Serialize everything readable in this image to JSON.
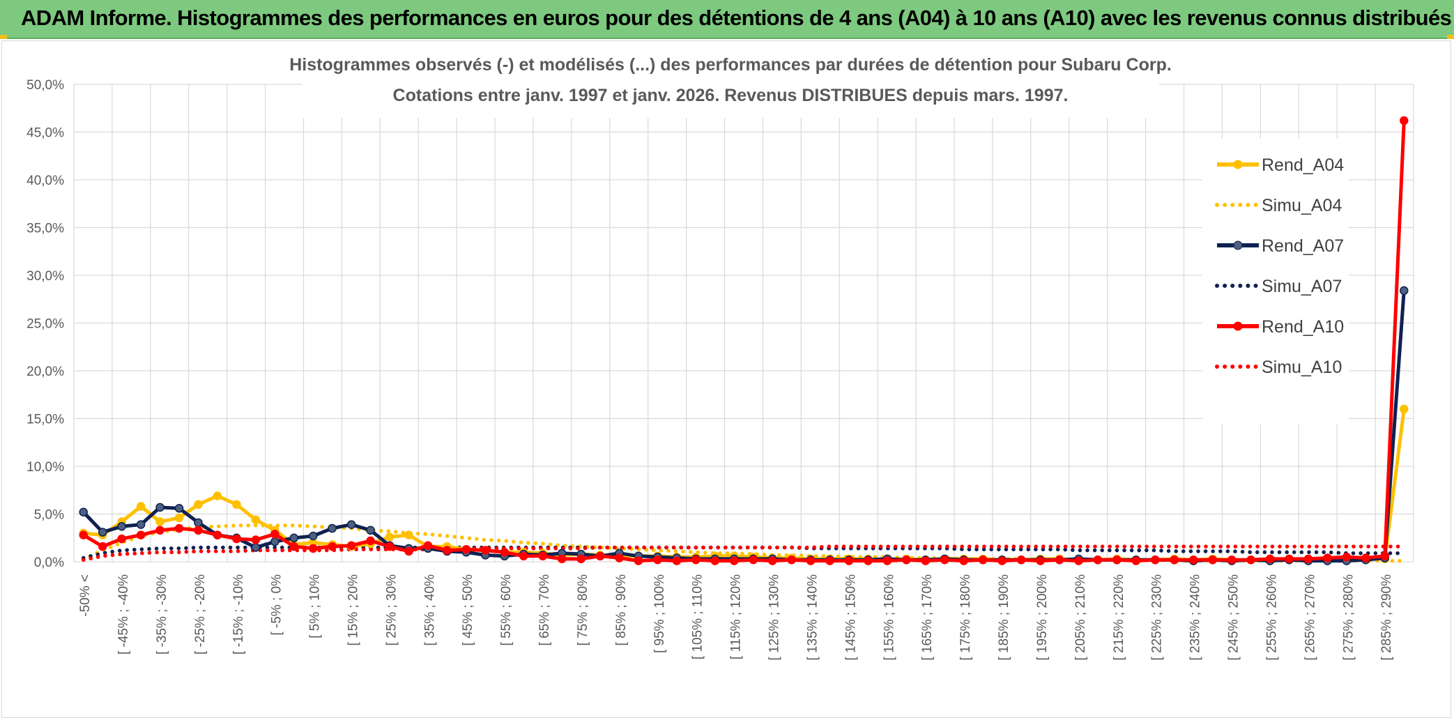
{
  "banner": {
    "title": "ADAM Informe. Histogrammes des performances en euros pour des détentions de 4 ans (A04) à 10 ans (A10) avec les revenus connus distribués"
  },
  "chart_data": {
    "type": "line",
    "title_lines": [
      "Histogrammes observés (-) et modélisés (...) des performances par durées de détention pour Subaru Corp.",
      "Cotations entre janv. 1997 et janv. 2026. Revenus DISTRIBUES depuis mars. 1997."
    ],
    "ylim": [
      0,
      50
    ],
    "yticks": [
      "0,0%",
      "5,0%",
      "10,0%",
      "15,0%",
      "20,0%",
      "25,0%",
      "30,0%",
      "35,0%",
      "40,0%",
      "45,0%",
      "50,0%"
    ],
    "ytick_values": [
      0,
      5,
      10,
      15,
      20,
      25,
      30,
      35,
      40,
      45,
      50
    ],
    "grid": true,
    "legend_position": "right",
    "x_labels": [
      "-50% <",
      "[ -45% ; -40%",
      "[ -35% ; -30%",
      "[ -25% ; -20%",
      "[ -15% ; -10%",
      "[ -5% ; 0%",
      "[ 5% ; 10%",
      "[ 15% ; 20%",
      "[ 25% ; 30%",
      "[ 35% ; 40%",
      "[ 45% ; 50%",
      "[ 55% ; 60%",
      "[ 65% ; 70%",
      "[ 75% ; 80%",
      "[ 85% ; 90%",
      "[ 95% ; 100%",
      "[ 105% ; 110%",
      "[ 115% ; 120%",
      "[ 125% ; 130%",
      "[ 135% ; 140%",
      "[ 145% ; 150%",
      "[ 155% ; 160%",
      "[ 165% ; 170%",
      "[ 175% ; 180%",
      "[ 185% ; 190%",
      "[ 195% ; 200%",
      "[ 205% ; 210%",
      "[ 215% ; 220%",
      "[ 225% ; 230%",
      "[ 235% ; 240%",
      "[ 245% ; 250%",
      "[ 255% ; 260%",
      "[ 265% ; 270%",
      "[ 275% ; 280%",
      "[ 285% ; 290%"
    ],
    "n_points": 70,
    "series": [
      {
        "name": "Rend_A04",
        "style": "solid",
        "color": "#ffc000",
        "markers": true,
        "values": [
          3.0,
          2.8,
          4.2,
          5.8,
          4.2,
          4.6,
          6.0,
          6.9,
          6.0,
          4.4,
          3.3,
          1.8,
          2.0,
          1.8,
          1.6,
          1.9,
          2.6,
          2.8,
          1.6,
          1.6,
          1.3,
          1.2,
          1.0,
          1.0,
          0.9,
          0.7,
          0.8,
          0.7,
          0.6,
          0.6,
          0.6,
          0.5,
          0.5,
          0.6,
          0.6,
          0.5,
          0.4,
          0.4,
          0.3,
          0.3,
          0.3,
          0.3,
          0.2,
          0.3,
          0.2,
          0.3,
          0.3,
          0.3,
          0.2,
          0.2,
          0.3,
          0.3,
          0.2,
          0.2,
          0.3,
          0.2,
          0.2,
          0.3,
          0.2,
          0.3,
          0.2,
          0.2,
          0.3,
          0.2,
          0.2,
          0.3,
          0.2,
          0.3,
          0.3,
          16.0
        ]
      },
      {
        "name": "Simu_A04",
        "style": "dotted",
        "color": "#ffc000",
        "markers": false,
        "values": [
          0.3,
          1.2,
          2.0,
          2.7,
          3.1,
          3.4,
          3.6,
          3.7,
          3.8,
          3.8,
          3.8,
          3.8,
          3.7,
          3.6,
          3.5,
          3.3,
          3.2,
          3.0,
          2.9,
          2.7,
          2.5,
          2.3,
          2.2,
          2.0,
          1.9,
          1.7,
          1.6,
          1.5,
          1.4,
          1.3,
          1.2,
          1.1,
          1.0,
          0.9,
          0.9,
          0.8,
          0.7,
          0.7,
          0.6,
          0.6,
          0.5,
          0.5,
          0.5,
          0.4,
          0.4,
          0.4,
          0.3,
          0.3,
          0.3,
          0.3,
          0.2,
          0.2,
          0.2,
          0.2,
          0.2,
          0.2,
          0.2,
          0.1,
          0.1,
          0.1,
          0.1,
          0.1,
          0.1,
          0.1,
          0.1,
          0.1,
          0.1,
          0.1,
          0.1,
          0.1
        ]
      },
      {
        "name": "Rend_A07",
        "style": "solid",
        "color": "#0f2151",
        "markers": true,
        "values": [
          5.2,
          3.1,
          3.7,
          3.9,
          5.7,
          5.6,
          4.1,
          2.8,
          2.5,
          1.5,
          2.1,
          2.5,
          2.7,
          3.5,
          3.9,
          3.3,
          1.7,
          1.4,
          1.4,
          1.1,
          1.0,
          0.7,
          0.6,
          0.8,
          0.7,
          0.9,
          0.8,
          0.6,
          0.9,
          0.6,
          0.5,
          0.4,
          0.3,
          0.3,
          0.3,
          0.3,
          0.3,
          0.2,
          0.2,
          0.2,
          0.2,
          0.2,
          0.3,
          0.2,
          0.2,
          0.3,
          0.2,
          0.2,
          0.2,
          0.2,
          0.2,
          0.2,
          0.3,
          0.2,
          0.2,
          0.2,
          0.2,
          0.2,
          0.1,
          0.2,
          0.1,
          0.2,
          0.1,
          0.2,
          0.1,
          0.1,
          0.1,
          0.2,
          0.4,
          28.4
        ]
      },
      {
        "name": "Simu_A07",
        "style": "dotted",
        "color": "#0f2151",
        "markers": false,
        "values": [
          0.4,
          0.9,
          1.2,
          1.3,
          1.4,
          1.4,
          1.5,
          1.5,
          1.5,
          1.5,
          1.5,
          1.5,
          1.5,
          1.5,
          1.5,
          1.5,
          1.5,
          1.5,
          1.5,
          1.5,
          1.5,
          1.5,
          1.5,
          1.5,
          1.5,
          1.5,
          1.5,
          1.5,
          1.5,
          1.5,
          1.5,
          1.5,
          1.5,
          1.5,
          1.5,
          1.5,
          1.5,
          1.5,
          1.4,
          1.4,
          1.4,
          1.4,
          1.4,
          1.4,
          1.4,
          1.4,
          1.3,
          1.3,
          1.3,
          1.3,
          1.3,
          1.3,
          1.2,
          1.2,
          1.2,
          1.2,
          1.2,
          1.1,
          1.1,
          1.1,
          1.1,
          1.0,
          1.0,
          1.0,
          1.0,
          1.0,
          0.9,
          0.9,
          0.9,
          0.9
        ]
      },
      {
        "name": "Rend_A10",
        "style": "solid",
        "color": "#ff0000",
        "markers": true,
        "values": [
          2.8,
          1.6,
          2.4,
          2.8,
          3.3,
          3.5,
          3.3,
          2.8,
          2.4,
          2.3,
          2.9,
          1.6,
          1.4,
          1.6,
          1.7,
          2.2,
          1.6,
          1.1,
          1.7,
          1.2,
          1.3,
          1.2,
          1.0,
          0.6,
          0.6,
          0.3,
          0.3,
          0.6,
          0.4,
          0.1,
          0.2,
          0.1,
          0.2,
          0.1,
          0.1,
          0.2,
          0.1,
          0.2,
          0.1,
          0.1,
          0.1,
          0.1,
          0.1,
          0.2,
          0.1,
          0.2,
          0.1,
          0.2,
          0.1,
          0.2,
          0.1,
          0.2,
          0.1,
          0.2,
          0.2,
          0.1,
          0.2,
          0.2,
          0.2,
          0.2,
          0.2,
          0.2,
          0.3,
          0.3,
          0.3,
          0.4,
          0.5,
          0.4,
          0.6,
          46.2
        ]
      },
      {
        "name": "Simu_A10",
        "style": "dotted",
        "color": "#ff0000",
        "markers": false,
        "values": [
          0.2,
          0.6,
          0.8,
          0.9,
          1.0,
          1.0,
          1.1,
          1.1,
          1.1,
          1.2,
          1.2,
          1.2,
          1.2,
          1.2,
          1.3,
          1.3,
          1.3,
          1.3,
          1.3,
          1.3,
          1.4,
          1.4,
          1.4,
          1.4,
          1.4,
          1.4,
          1.4,
          1.5,
          1.5,
          1.5,
          1.5,
          1.5,
          1.5,
          1.5,
          1.5,
          1.5,
          1.5,
          1.5,
          1.5,
          1.6,
          1.6,
          1.6,
          1.6,
          1.6,
          1.6,
          1.6,
          1.6,
          1.6,
          1.6,
          1.6,
          1.6,
          1.6,
          1.6,
          1.6,
          1.6,
          1.6,
          1.6,
          1.6,
          1.6,
          1.6,
          1.6,
          1.6,
          1.6,
          1.6,
          1.6,
          1.6,
          1.6,
          1.6,
          1.6,
          1.6
        ]
      }
    ]
  }
}
